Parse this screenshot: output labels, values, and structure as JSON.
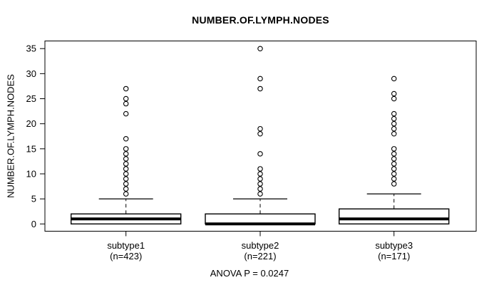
{
  "chart_data": {
    "type": "boxplot",
    "title": "NUMBER.OF.LYMPH.NODES",
    "ylabel": "NUMBER.OF.LYMPH.NODES",
    "annotation": "ANOVA P = 0.0247",
    "yticks": [
      0,
      5,
      10,
      15,
      20,
      25,
      30,
      35
    ],
    "ylim": [
      0,
      35
    ],
    "grid": false,
    "colors": {
      "stroke": "#000000",
      "box_fill": "#ffffff",
      "background": "#ffffff"
    },
    "groups": [
      {
        "label": "subtype1",
        "sublabel": "(n=423)",
        "n": 423,
        "q1": 0,
        "median": 1,
        "q3": 2,
        "whisker_low": 0,
        "whisker_high": 5,
        "outliers": [
          6,
          7,
          8,
          9,
          10,
          11,
          12,
          13,
          14,
          15,
          17,
          22,
          24,
          25,
          27
        ]
      },
      {
        "label": "subtype2",
        "sublabel": "(n=221)",
        "n": 221,
        "q1": 0,
        "median": 0,
        "q3": 2,
        "whisker_low": 0,
        "whisker_high": 5,
        "outliers": [
          6,
          7,
          8,
          9,
          10,
          11,
          14,
          18,
          19,
          27,
          29,
          35
        ]
      },
      {
        "label": "subtype3",
        "sublabel": "(n=171)",
        "n": 171,
        "q1": 0,
        "median": 1,
        "q3": 3,
        "whisker_low": 0,
        "whisker_high": 6,
        "outliers": [
          8,
          9,
          10,
          11,
          12,
          13,
          14,
          15,
          18,
          19,
          20,
          21,
          22,
          25,
          26,
          29
        ]
      }
    ]
  }
}
